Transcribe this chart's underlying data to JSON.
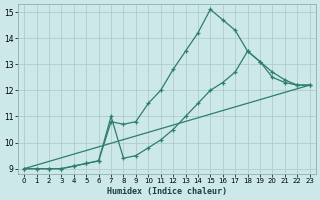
{
  "xlabel": "Humidex (Indice chaleur)",
  "bg_color": "#cce8e8",
  "grid_color": "#b0cccc",
  "line_color": "#2e7d6e",
  "xlim": [
    -0.5,
    23.5
  ],
  "ylim": [
    8.8,
    15.3
  ],
  "xticks": [
    0,
    1,
    2,
    3,
    4,
    5,
    6,
    7,
    8,
    9,
    10,
    11,
    12,
    13,
    14,
    15,
    16,
    17,
    18,
    19,
    20,
    21,
    22,
    23
  ],
  "yticks": [
    9,
    10,
    11,
    12,
    13,
    14,
    15
  ],
  "line1_x": [
    0,
    1,
    2,
    3,
    4,
    5,
    6,
    7,
    8,
    9,
    10,
    11,
    12,
    13,
    14,
    15,
    16,
    17,
    18,
    19,
    20,
    21,
    22,
    23
  ],
  "line1_y": [
    9.0,
    9.0,
    9.0,
    9.0,
    9.1,
    9.2,
    9.3,
    10.8,
    10.7,
    10.8,
    11.5,
    12.0,
    12.8,
    13.5,
    14.2,
    15.1,
    14.7,
    14.3,
    13.5,
    13.1,
    12.5,
    12.3,
    12.2,
    12.2
  ],
  "line2_x": [
    0,
    1,
    2,
    3,
    4,
    5,
    6,
    7,
    8,
    9,
    10,
    11,
    12,
    13,
    14,
    15,
    16,
    17,
    18,
    19,
    20,
    21,
    22,
    23
  ],
  "line2_y": [
    9.0,
    9.0,
    9.0,
    9.0,
    9.1,
    9.2,
    9.3,
    11.0,
    9.4,
    9.5,
    9.8,
    10.1,
    10.5,
    11.0,
    11.5,
    12.0,
    12.3,
    12.7,
    13.5,
    13.1,
    12.7,
    12.4,
    12.2,
    12.2
  ],
  "line3_x": [
    0,
    23
  ],
  "line3_y": [
    9.0,
    12.2
  ]
}
